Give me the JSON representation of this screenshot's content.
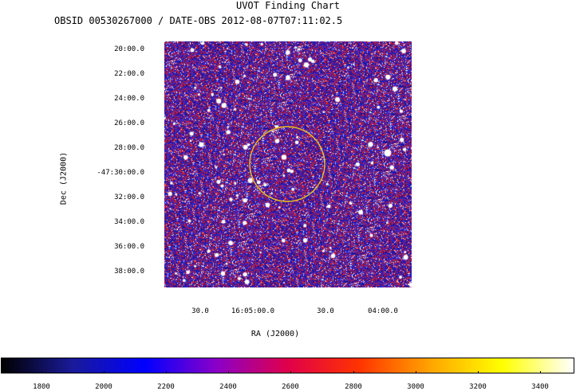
{
  "header": {
    "title": "UVOT Finding Chart",
    "subtitle": "OBSID 00530267000 / DATE-OBS 2012-08-07T07:11:02.5"
  },
  "chart_data": {
    "type": "heatmap",
    "title": "UVOT Finding Chart",
    "subtitle": "OBSID 00530267000 / DATE-OBS 2012-08-07T07:11:02.5",
    "xlabel": "RA (J2000)",
    "ylabel": "Dec (J2000)",
    "x_ticks": [
      "30.0",
      "16:05:00.0",
      "30.0",
      "04:00.0"
    ],
    "y_ticks": [
      "20:00.0",
      "22:00.0",
      "24:00.0",
      "26:00.0",
      "28:00.0",
      "-47:30:00.0",
      "32:00.0",
      "34:00.0",
      "36:00.0",
      "38:00.0"
    ],
    "colorbar": {
      "ticks": [
        "1800",
        "2000",
        "2200",
        "2400",
        "2600",
        "2800",
        "3000",
        "3200",
        "3400"
      ],
      "tick_values": [
        1800,
        2000,
        2200,
        2400,
        2600,
        2800,
        3000,
        3200,
        3400
      ],
      "range": [
        1670,
        3510
      ],
      "colormap": [
        "#000000",
        "#1a1a9a",
        "#0000ff",
        "#8a00c8",
        "#e0004a",
        "#ff3300",
        "#ffa500",
        "#ffff00",
        "#ffffff"
      ]
    },
    "colors": {
      "background_field": "#2a22c9",
      "pixel_red": "#e02020",
      "pixel_white": "#ffffff",
      "circle": "#e8c020"
    },
    "grid": false
  }
}
